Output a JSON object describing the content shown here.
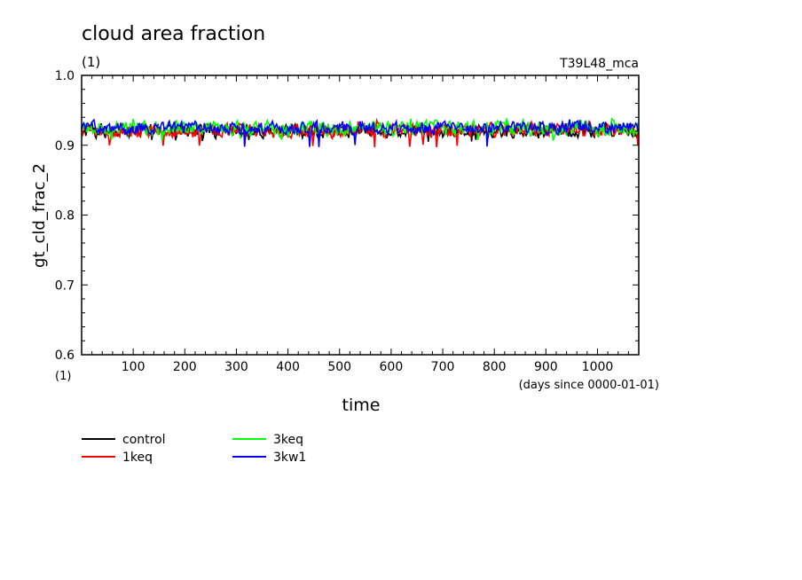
{
  "chart_data": {
    "type": "line",
    "title": "cloud area fraction",
    "units_label": "(1)",
    "run_label": "T39L48_mca",
    "xlabel": "time",
    "xunit_note": "(days since 0000-01-01)",
    "x_corner_unit": "(1)",
    "ylabel": "gt_cld_frac_2",
    "xlim": [
      0,
      1080
    ],
    "ylim": [
      0.6,
      1.0
    ],
    "x_ticks": [
      100,
      200,
      300,
      400,
      500,
      600,
      700,
      800,
      900,
      1000
    ],
    "y_ticks": [
      0.6,
      0.7,
      0.8,
      0.9,
      1.0
    ],
    "y_tick_labels": [
      "0.6",
      "0.7",
      "0.8",
      "0.9",
      "1.0"
    ],
    "grid": false,
    "legend_position": "below-left",
    "series": [
      {
        "name": "control",
        "color": "#000000",
        "mean": 0.92,
        "low": 0.904,
        "high": 0.934
      },
      {
        "name": "1keq",
        "color": "#ff0000",
        "mean": 0.921,
        "low": 0.897,
        "high": 0.936
      },
      {
        "name": "3keq",
        "color": "#00ff00",
        "mean": 0.924,
        "low": 0.906,
        "high": 0.94
      },
      {
        "name": "3kw1",
        "color": "#0000ff",
        "mean": 0.925,
        "low": 0.897,
        "high": 0.938
      }
    ]
  }
}
